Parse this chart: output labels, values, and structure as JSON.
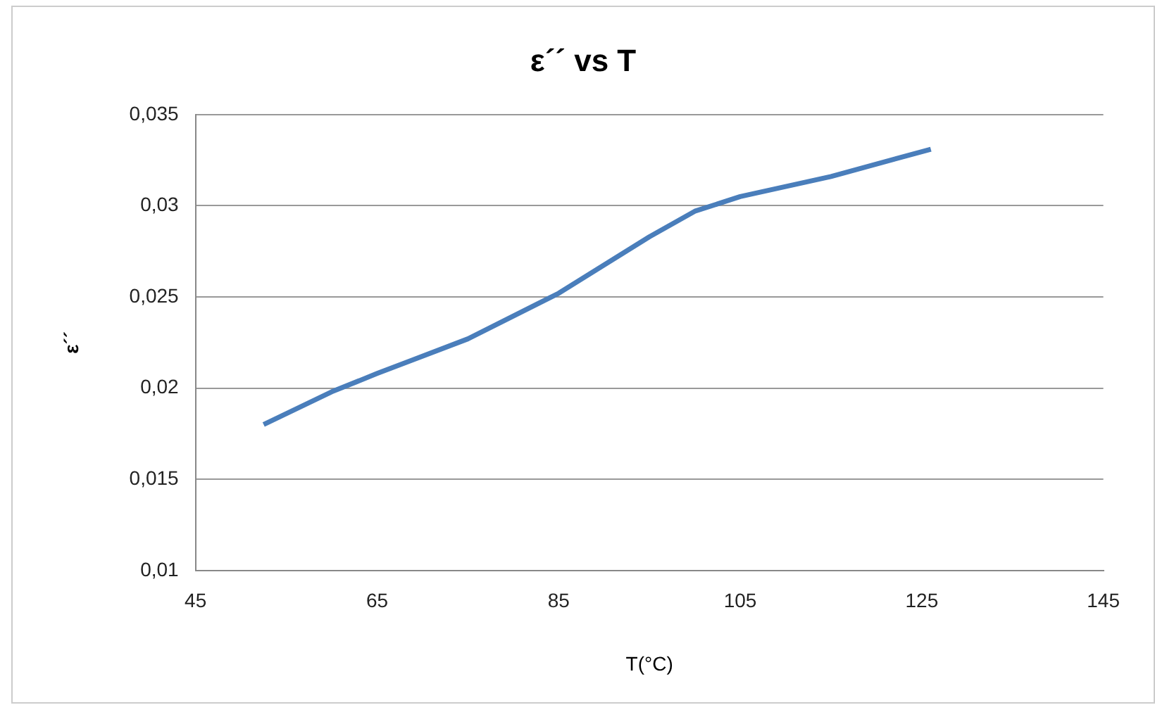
{
  "chart_data": {
    "type": "line",
    "title": "ε´´ vs T",
    "xlabel": "T(°C)",
    "ylabel": "ε´´",
    "series": [
      {
        "color": "#4a7ebb",
        "x": [
          52.5,
          60,
          65,
          75,
          85,
          95,
          100,
          105,
          115,
          126
        ],
        "values": [
          0.018,
          0.0198,
          0.0208,
          0.0227,
          0.0252,
          0.0283,
          0.0297,
          0.0305,
          0.0316,
          0.0331
        ]
      }
    ],
    "xlim": [
      45,
      145
    ],
    "xticks": [
      45,
      65,
      85,
      105,
      125,
      145
    ],
    "ylim": [
      0.01,
      0.035
    ],
    "yticks": [
      {
        "value": 0.01,
        "label": "0,01"
      },
      {
        "value": 0.015,
        "label": "0,015"
      },
      {
        "value": 0.02,
        "label": "0,02"
      },
      {
        "value": 0.025,
        "label": "0,025"
      },
      {
        "value": 0.03,
        "label": "0,03"
      },
      {
        "value": 0.035,
        "label": "0,035"
      }
    ],
    "grid": "y",
    "legend": false,
    "marker": "none",
    "line_style": "solid"
  }
}
